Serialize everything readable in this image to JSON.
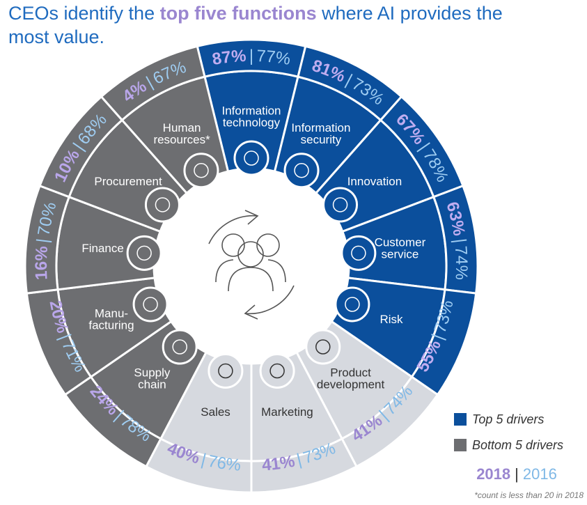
{
  "title": {
    "part1": "CEOs identify the ",
    "highlight": "top five functions",
    "part2": " where AI provides the",
    "line2": "most value."
  },
  "separator": "|",
  "segments": [
    {
      "label": [
        "Information",
        "technology"
      ],
      "group": "top",
      "pct_2018": "87%",
      "pct_2016": "77%"
    },
    {
      "label": [
        "Information",
        "security"
      ],
      "group": "top",
      "pct_2018": "81%",
      "pct_2016": "73%"
    },
    {
      "label": [
        "Innovation"
      ],
      "group": "top",
      "pct_2018": "67%",
      "pct_2016": "78%"
    },
    {
      "label": [
        "Customer",
        "service"
      ],
      "group": "top",
      "pct_2018": "63%",
      "pct_2016": "74%"
    },
    {
      "label": [
        "Risk"
      ],
      "group": "top",
      "pct_2018": "55%",
      "pct_2016": "73%"
    },
    {
      "label": [
        "Product",
        "development"
      ],
      "group": "middle",
      "pct_2018": "41%",
      "pct_2016": "74%"
    },
    {
      "label": [
        "Marketing"
      ],
      "group": "middle",
      "pct_2018": "41%",
      "pct_2016": "73%"
    },
    {
      "label": [
        "Sales"
      ],
      "group": "middle",
      "pct_2018": "40%",
      "pct_2016": "76%"
    },
    {
      "label": [
        "Supply",
        "chain"
      ],
      "group": "bottom",
      "pct_2018": "24%",
      "pct_2016": "78%"
    },
    {
      "label": [
        "Manu-",
        "facturing"
      ],
      "group": "bottom",
      "pct_2018": "20%",
      "pct_2016": "71%"
    },
    {
      "label": [
        "Finance"
      ],
      "group": "bottom",
      "pct_2018": "16%",
      "pct_2016": "70%"
    },
    {
      "label": [
        "Procurement"
      ],
      "group": "bottom",
      "pct_2018": "10%",
      "pct_2016": "68%"
    },
    {
      "label": [
        "Human",
        "resources*"
      ],
      "group": "bottom",
      "pct_2018": "4%",
      "pct_2016": "67%"
    }
  ],
  "legend": {
    "top": "Top 5 drivers",
    "bottom": "Bottom 5 drivers",
    "year_2018": "2018",
    "year_2016": "2016"
  },
  "footnote": "*count is less than 20 in 2018"
}
